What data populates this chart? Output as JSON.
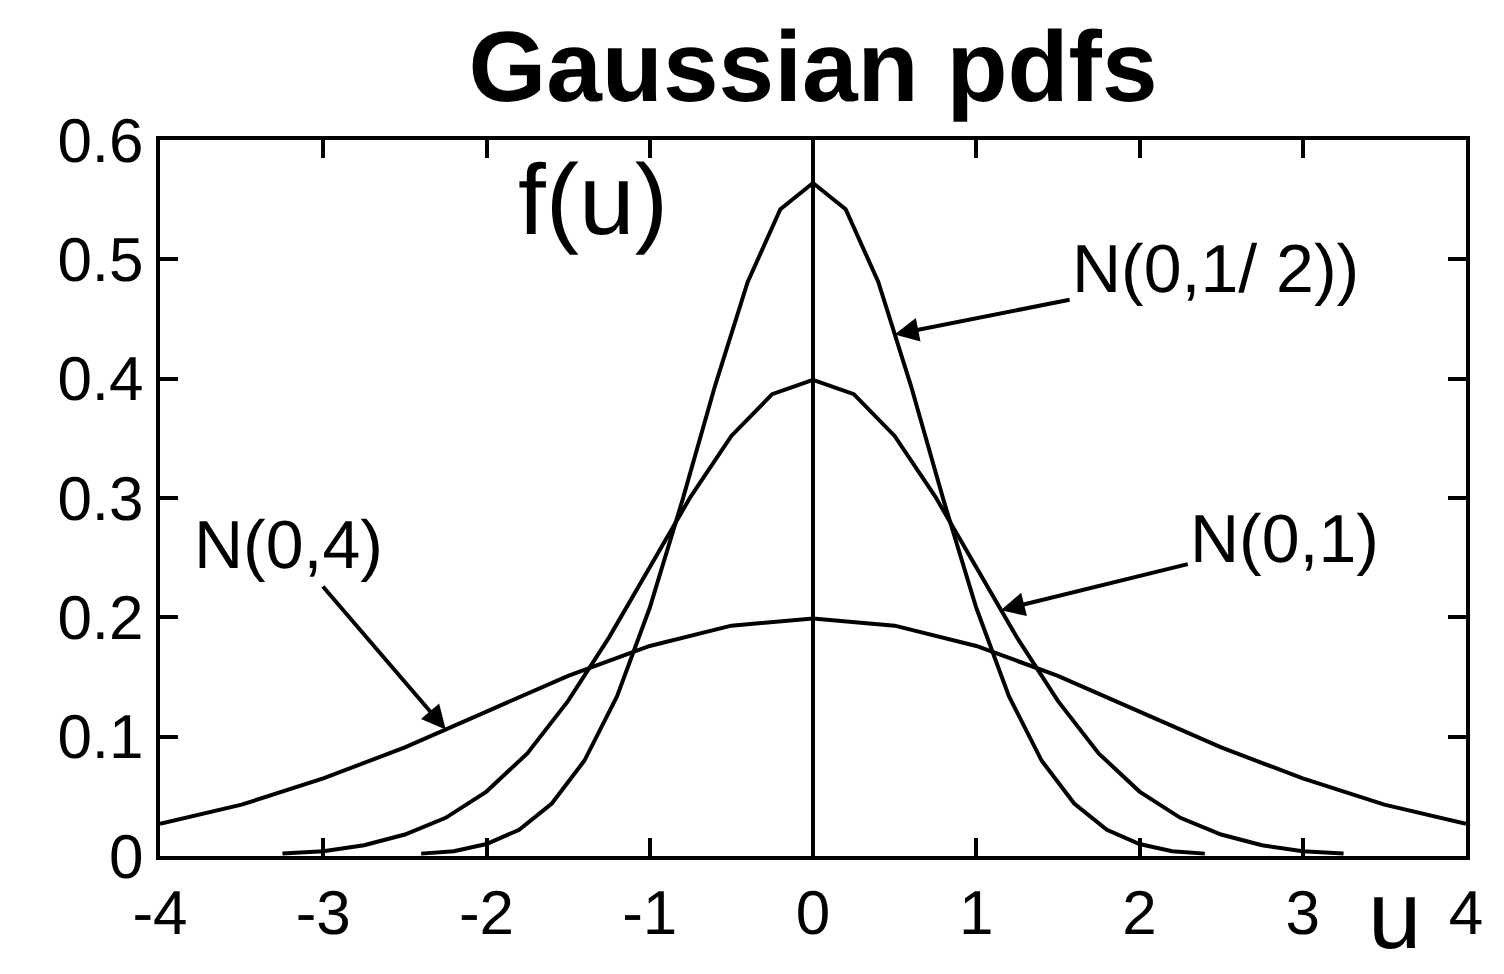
{
  "chart_data": {
    "type": "line",
    "title": "Gaussian pdfs",
    "xlabel": "u",
    "ylabel": "f(u)",
    "xlim": [
      -4,
      4
    ],
    "ylim": [
      0,
      0.6
    ],
    "xticks": [
      -4,
      -3,
      -2,
      -1,
      0,
      1,
      2,
      3,
      4
    ],
    "yticks": [
      0,
      0.1,
      0.2,
      0.3,
      0.4,
      0.5,
      0.6
    ],
    "series": [
      {
        "color": "#000000",
        "x": [
          -2.4,
          -2.2,
          -2.0,
          -1.8,
          -1.6,
          -1.4,
          -1.2,
          -1.0,
          -0.8,
          -0.6,
          -0.4,
          -0.2,
          0,
          0.2,
          0.4,
          0.6,
          0.8,
          1.0,
          1.2,
          1.4,
          1.6,
          1.8,
          2.0,
          2.2,
          2.4
        ],
        "values": [
          0.002,
          0.004,
          0.01,
          0.022,
          0.044,
          0.08,
          0.134,
          0.208,
          0.298,
          0.394,
          0.481,
          0.542,
          0.564,
          0.542,
          0.481,
          0.394,
          0.298,
          0.208,
          0.134,
          0.08,
          0.044,
          0.022,
          0.01,
          0.004,
          0.002
        ]
      },
      {
        "color": "#000000",
        "x": [
          -3.25,
          -3.0,
          -2.75,
          -2.5,
          -2.25,
          -2.0,
          -1.75,
          -1.5,
          -1.25,
          -1.0,
          -0.75,
          -0.5,
          -0.25,
          0,
          0.25,
          0.5,
          0.75,
          1.0,
          1.25,
          1.5,
          1.75,
          2.0,
          2.25,
          2.5,
          2.75,
          3.0,
          3.25
        ],
        "values": [
          0.002,
          0.004,
          0.009,
          0.018,
          0.032,
          0.054,
          0.086,
          0.13,
          0.183,
          0.242,
          0.301,
          0.352,
          0.387,
          0.399,
          0.387,
          0.352,
          0.301,
          0.242,
          0.183,
          0.13,
          0.086,
          0.054,
          0.032,
          0.018,
          0.009,
          0.004,
          0.002
        ]
      },
      {
        "color": "#000000",
        "x": [
          -4,
          -3.5,
          -3,
          -2.5,
          -2,
          -1.5,
          -1,
          -0.5,
          0,
          0.5,
          1,
          1.5,
          2,
          2.5,
          3,
          3.5,
          4
        ],
        "values": [
          0.027,
          0.043,
          0.065,
          0.091,
          0.121,
          0.151,
          0.176,
          0.193,
          0.199,
          0.193,
          0.176,
          0.151,
          0.121,
          0.091,
          0.065,
          0.043,
          0.027
        ]
      }
    ],
    "ref_lines": [
      {
        "axis": "x",
        "value": 0,
        "color": "#000000"
      }
    ],
    "annotations": [
      {
        "text": "N(0,1/ 2))",
        "x": 0.5,
        "y": 0.437
      },
      {
        "text": "N(0,1)",
        "x": 1.15,
        "y": 0.206
      },
      {
        "text": "N(0,4)",
        "x": -2.25,
        "y": 0.106
      }
    ],
    "grid": false
  }
}
